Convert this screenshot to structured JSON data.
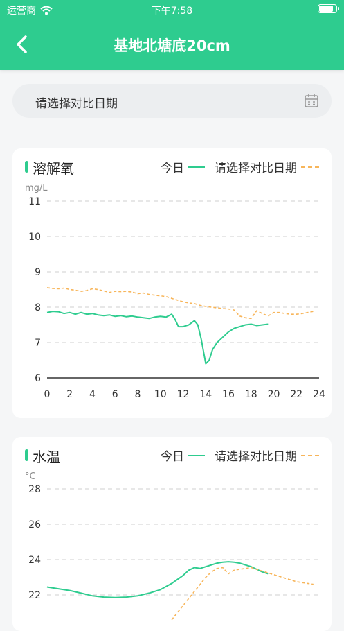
{
  "status_bar": {
    "carrier": "运营商",
    "time": "下午7:58"
  },
  "nav": {
    "title": "基地北塘底20cm"
  },
  "date_picker": {
    "placeholder": "请选择对比日期"
  },
  "charts": [
    {
      "title": "溶解氧",
      "legend": [
        "今日",
        "请选择对比日期"
      ],
      "accent": "#2ecc8f",
      "compare_color": "#f7b55a"
    },
    {
      "title": "水温",
      "legend": [
        "今日",
        "请选择对比日期"
      ],
      "accent": "#2ecc8f",
      "compare_color": "#f7b55a"
    }
  ],
  "chart_data": [
    {
      "type": "line",
      "ylabel": "mg/L",
      "ylim": [
        6,
        11
      ],
      "yticks": [
        6,
        7,
        8,
        9,
        10,
        11
      ],
      "xlim": [
        0,
        24
      ],
      "xticks": [
        0,
        2,
        4,
        6,
        8,
        10,
        12,
        14,
        16,
        18,
        20,
        22,
        24
      ],
      "grid": true,
      "legend_position": "top-right",
      "series": [
        {
          "name": "今日",
          "style": "solid",
          "x": [
            0,
            0.5,
            1,
            1.5,
            2,
            2.5,
            3,
            3.5,
            4,
            4.5,
            5,
            5.5,
            6,
            6.5,
            7,
            7.5,
            8,
            8.5,
            9,
            9.5,
            10,
            10.5,
            11,
            11.3,
            11.6,
            12,
            12.5,
            13,
            13.3,
            13.6,
            14,
            14.3,
            14.6,
            15,
            15.5,
            16,
            16.5,
            17,
            17.5,
            18,
            18.5,
            19,
            19.5
          ],
          "y": [
            7.85,
            7.88,
            7.87,
            7.82,
            7.85,
            7.8,
            7.85,
            7.8,
            7.82,
            7.78,
            7.76,
            7.78,
            7.74,
            7.76,
            7.73,
            7.75,
            7.72,
            7.7,
            7.68,
            7.72,
            7.74,
            7.72,
            7.8,
            7.65,
            7.45,
            7.45,
            7.5,
            7.62,
            7.5,
            7.1,
            6.4,
            6.5,
            6.8,
            7.0,
            7.15,
            7.3,
            7.4,
            7.45,
            7.5,
            7.52,
            7.48,
            7.5,
            7.52
          ]
        },
        {
          "name": "请选择对比日期",
          "style": "dashed",
          "x": [
            0,
            0.5,
            1,
            1.5,
            2,
            2.5,
            3,
            3.5,
            4,
            4.5,
            5,
            5.5,
            6,
            6.5,
            7,
            7.5,
            8,
            8.5,
            9,
            9.5,
            10,
            10.5,
            11,
            11.5,
            12,
            12.5,
            13,
            13.5,
            14,
            14.5,
            15,
            15.5,
            16,
            16.5,
            17,
            17.5,
            18,
            18.5,
            19,
            19.5,
            20,
            20.5,
            21,
            21.5,
            22,
            22.5,
            23,
            23.5
          ],
          "y": [
            8.55,
            8.53,
            8.52,
            8.54,
            8.5,
            8.48,
            8.45,
            8.47,
            8.52,
            8.5,
            8.46,
            8.42,
            8.45,
            8.44,
            8.45,
            8.43,
            8.38,
            8.4,
            8.36,
            8.34,
            8.32,
            8.3,
            8.25,
            8.2,
            8.15,
            8.12,
            8.1,
            8.05,
            8.02,
            8.0,
            7.98,
            7.96,
            7.95,
            7.92,
            7.75,
            7.7,
            7.68,
            7.9,
            7.82,
            7.75,
            7.85,
            7.85,
            7.82,
            7.8,
            7.8,
            7.82,
            7.85,
            7.88
          ]
        }
      ]
    },
    {
      "type": "line",
      "ylabel": "°C",
      "ylim": [
        22,
        28
      ],
      "yticks": [
        22,
        24,
        26,
        28
      ],
      "xlim": [
        0,
        24
      ],
      "grid": true,
      "legend_position": "top-right",
      "series": [
        {
          "name": "今日",
          "style": "solid",
          "x": [
            0,
            1,
            2,
            3,
            4,
            5,
            6,
            7,
            8,
            9,
            10,
            11,
            12,
            12.5,
            13,
            13.5,
            14,
            14.5,
            15,
            15.5,
            16,
            16.5,
            17,
            17.5,
            18,
            18.5,
            19,
            19.5
          ],
          "y": [
            22.45,
            22.35,
            22.25,
            22.1,
            21.95,
            21.88,
            21.85,
            21.88,
            21.95,
            22.1,
            22.3,
            22.65,
            23.1,
            23.4,
            23.55,
            23.5,
            23.6,
            23.7,
            23.8,
            23.85,
            23.88,
            23.85,
            23.8,
            23.7,
            23.6,
            23.45,
            23.3,
            23.2
          ]
        },
        {
          "name": "请选择对比日期",
          "style": "dashed",
          "x": [
            11,
            11.5,
            12,
            12.5,
            13,
            13.5,
            14,
            14.5,
            15,
            15.5,
            16,
            16.5,
            17,
            17.5,
            18,
            18.5,
            19,
            19.5,
            20,
            20.5,
            21,
            21.5,
            22,
            22.5,
            23,
            23.5
          ],
          "y": [
            20.6,
            21.0,
            21.4,
            21.8,
            22.2,
            22.6,
            23.0,
            23.3,
            23.5,
            23.55,
            23.2,
            23.4,
            23.45,
            23.5,
            23.55,
            23.45,
            23.35,
            23.25,
            23.15,
            23.05,
            22.95,
            22.85,
            22.75,
            22.7,
            22.65,
            22.6
          ]
        }
      ]
    }
  ]
}
